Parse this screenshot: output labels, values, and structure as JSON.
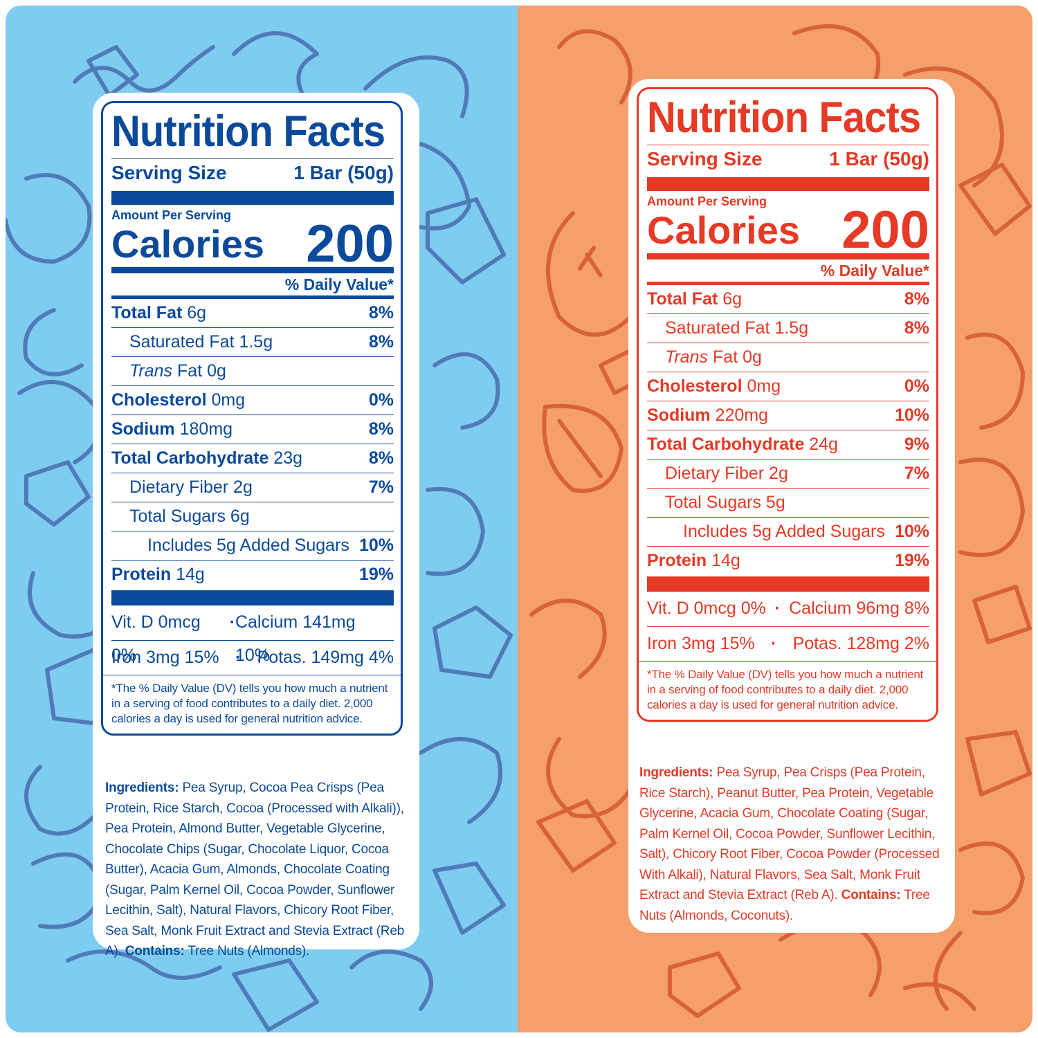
{
  "colors": {
    "left_bg": "#7fccf1",
    "left_art": "#4f7cb8",
    "left_ink": "#0b4a9a",
    "right_bg": "#f59f6b",
    "right_art": "#d8623b",
    "right_ink": "#e43a26"
  },
  "labels": [
    {
      "title": "Nutrition Facts",
      "serving_label": "Serving Size",
      "serving_value": "1 Bar (50g)",
      "amount_per_serving": "Amount Per Serving",
      "calories_label": "Calories",
      "calories_value": "200",
      "daily_value_header": "% Daily Value*",
      "nutrients": [
        {
          "name": "Total Fat",
          "amount": "6g",
          "dv": "8%"
        },
        {
          "name": "Saturated Fat",
          "amount": "1.5g",
          "dv": "8%"
        },
        {
          "name": "Trans",
          "amount": "Fat 0g",
          "dv": ""
        },
        {
          "name": "Cholesterol",
          "amount": "0mg",
          "dv": "0%"
        },
        {
          "name": "Sodium",
          "amount": "180mg",
          "dv": "8%"
        },
        {
          "name": "Total Carbohydrate",
          "amount": "23g",
          "dv": "8%"
        },
        {
          "name": "Dietary Fiber",
          "amount": "2g",
          "dv": "7%"
        },
        {
          "name": "Total Sugars",
          "amount": "6g",
          "dv": ""
        },
        {
          "name": "Includes 5g Added Sugars",
          "amount": "",
          "dv": "10%"
        },
        {
          "name": "Protein",
          "amount": "14g",
          "dv": "19%"
        }
      ],
      "vitamins_row1": {
        "a": "Vit. D 0mcg 0%",
        "sep": "·",
        "b": "Calcium 141mg 10%"
      },
      "vitamins_row2": {
        "a": "Iron 3mg 15%",
        "sep": "·",
        "b": "Potas. 149mg 4%"
      },
      "footnote": "*The % Daily Value (DV) tells you how much a nutrient in a serving of food contributes to a daily diet. 2,000 calories a day is used for general nutrition advice.",
      "ingredients_label": "Ingredients:",
      "ingredients_text": "Pea Syrup, Cocoa Pea Crisps (Pea Protein, Rice Starch, Cocoa (Processed with Alkali)), Pea Protein, Almond Butter, Vegetable Glycerine, Chocolate Chips (Sugar, Chocolate Liquor, Cocoa Butter), Acacia Gum, Almonds, Chocolate Coating (Sugar, Palm Kernel Oil, Cocoa Powder, Sunflower Lecithin, Salt), Natural Flavors, Chicory Root Fiber, Sea Salt, Monk Fruit Extract and Stevia Extract (Reb A).",
      "contains_label": "Contains:",
      "contains_text": "Tree Nuts (Almonds)."
    },
    {
      "title": "Nutrition Facts",
      "serving_label": "Serving Size",
      "serving_value": "1 Bar (50g)",
      "amount_per_serving": "Amount Per Serving",
      "calories_label": "Calories",
      "calories_value": "200",
      "daily_value_header": "% Daily Value*",
      "nutrients": [
        {
          "name": "Total Fat",
          "amount": "6g",
          "dv": "8%"
        },
        {
          "name": "Saturated Fat",
          "amount": "1.5g",
          "dv": "8%"
        },
        {
          "name": "Trans",
          "amount": "Fat 0g",
          "dv": ""
        },
        {
          "name": "Cholesterol",
          "amount": "0mg",
          "dv": "0%"
        },
        {
          "name": "Sodium",
          "amount": "220mg",
          "dv": "10%"
        },
        {
          "name": "Total Carbohydrate",
          "amount": "24g",
          "dv": "9%"
        },
        {
          "name": "Dietary Fiber",
          "amount": "2g",
          "dv": "7%"
        },
        {
          "name": "Total Sugars",
          "amount": "5g",
          "dv": ""
        },
        {
          "name": "Includes 5g Added Sugars",
          "amount": "",
          "dv": "10%"
        },
        {
          "name": "Protein",
          "amount": "14g",
          "dv": "19%"
        }
      ],
      "vitamins_row1": {
        "a": "Vit. D 0mcg 0%",
        "sep": "·",
        "b": "Calcium 96mg 8%"
      },
      "vitamins_row2": {
        "a": "Iron 3mg 15%",
        "sep": "·",
        "b": "Potas. 128mg 2%"
      },
      "footnote": "*The % Daily Value (DV) tells you how much a nutrient in a serving of food contributes to a daily diet. 2,000 calories a day is used for general nutrition advice.",
      "ingredients_label": "Ingredients:",
      "ingredients_text": "Pea Syrup, Pea Crisps (Pea Protein, Rice Starch), Peanut Butter, Pea Protein, Vegetable Glycerine, Acacia Gum, Chocolate Coating (Sugar, Palm Kernel Oil, Cocoa Powder, Sunflower Lecithin, Salt), Chicory Root Fiber, Cocoa Powder (Processed With Alkali), Natural Flavors, Sea Salt, Monk Fruit Extract and Stevia Extract (Reb A).",
      "contains_label": "Contains:",
      "contains_text": "Tree Nuts (Almonds, Coconuts)."
    }
  ]
}
